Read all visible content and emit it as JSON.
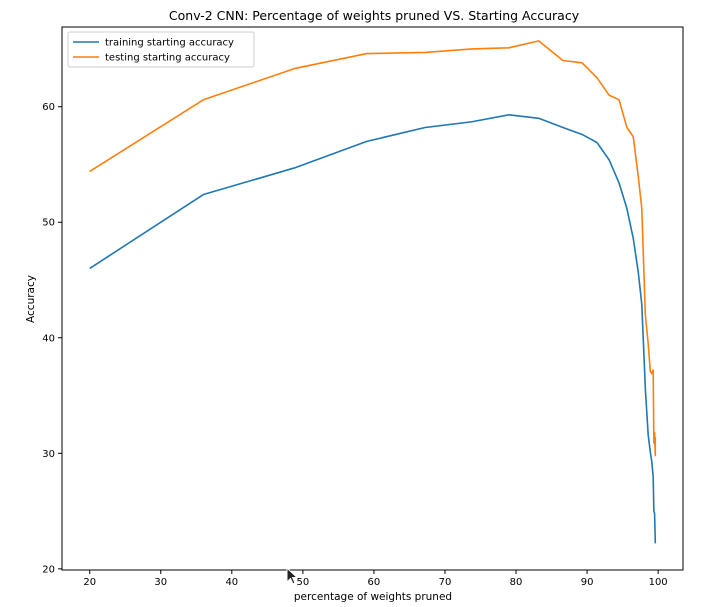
{
  "chart_data": {
    "type": "line",
    "title": "Conv-2 CNN: Percentage of weights pruned VS. Starting Accuracy",
    "xlabel": "percentage of weights pruned",
    "ylabel": "Accuracy",
    "xlim": [
      16.1,
      103.5
    ],
    "ylim": [
      19.9,
      66.9
    ],
    "xticks": [
      20,
      30,
      40,
      50,
      60,
      70,
      80,
      90,
      100
    ],
    "yticks": [
      20,
      30,
      40,
      50,
      60
    ],
    "grid": false,
    "legend_position": "top-left",
    "series": [
      {
        "name": "training starting accuracy",
        "color": "#1f77b4",
        "x": [
          20,
          36,
          48.8,
          59,
          67.2,
          73.8,
          79,
          83.2,
          86.6,
          89.3,
          91.4,
          93.1,
          94.5,
          95.6,
          96.5,
          97.2,
          97.7,
          98.2,
          98.6,
          98.9,
          99.1,
          99.3,
          99.4,
          99.5,
          99.6,
          99.6
        ],
        "y": [
          46.0,
          52.4,
          54.7,
          57.0,
          58.2,
          58.7,
          59.3,
          59.0,
          58.2,
          57.6,
          56.9,
          55.4,
          53.4,
          51.2,
          48.6,
          45.7,
          42.9,
          35.6,
          31.6,
          30.1,
          29.3,
          28.0,
          25.0,
          24.8,
          22.3,
          22.2
        ]
      },
      {
        "name": "testing starting accuracy",
        "color": "#ff7f0e",
        "x": [
          20,
          36,
          48.8,
          59,
          67.2,
          73.8,
          79,
          83.2,
          86.6,
          89.3,
          91.4,
          93.1,
          94.5,
          95.6,
          96.5,
          97.2,
          97.7,
          98.2,
          98.6,
          98.9,
          99.1,
          99.3,
          99.4,
          99.5,
          99.6,
          99.6
        ],
        "y": [
          54.4,
          60.6,
          63.3,
          64.6,
          64.7,
          65.0,
          65.1,
          65.7,
          64.0,
          63.8,
          62.5,
          61.0,
          60.6,
          58.2,
          57.4,
          54.0,
          51.2,
          42.0,
          39.5,
          37.1,
          36.9,
          37.2,
          30.9,
          31.8,
          29.8,
          31.4
        ]
      }
    ]
  }
}
